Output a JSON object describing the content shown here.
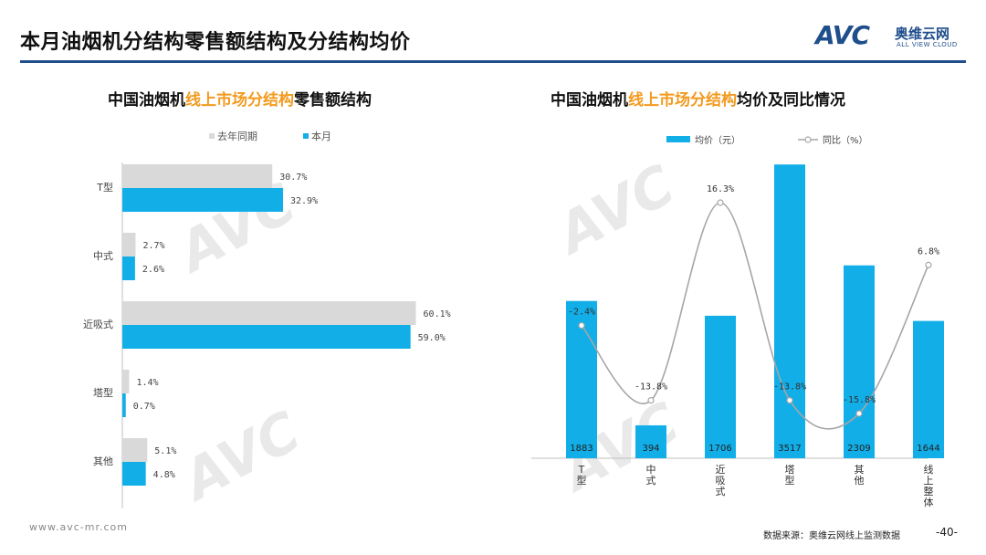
{
  "header": {
    "title": "本月油烟机分结构零售额结构及分结构均价",
    "logo_avc": "AVC",
    "logo_cn": "奥维云网",
    "logo_en": "ALL VIEW CLOUD"
  },
  "left_chart_title": {
    "part1": "中国油烟机",
    "part2": "线上市场分结构",
    "part3": "零售额结构"
  },
  "right_chart_title": {
    "part1": "中国油烟机",
    "part2": "线上市场分结构",
    "part3": "均价及同比情况"
  },
  "footer": {
    "url": "www.avc-mr.com",
    "source": "数据来源：奥维云网线上监测数据",
    "page": "-40-"
  },
  "colors": {
    "current": "#12aee8",
    "last_year": "#d9d9d9",
    "line": "#a6a6a6",
    "highlight": "#f39a1e",
    "brand": "#1f4e8c"
  },
  "chart_data": [
    {
      "type": "bar",
      "orientation": "horizontal",
      "categories": [
        "T型",
        "中式",
        "近吸式",
        "塔型",
        "其他"
      ],
      "series": [
        {
          "name": "去年同期",
          "values": [
            30.7,
            2.7,
            60.1,
            1.4,
            5.1
          ],
          "labels": [
            "30.7%",
            "2.7%",
            "60.1%",
            "1.4%",
            "5.1%"
          ]
        },
        {
          "name": "本月",
          "values": [
            32.9,
            2.6,
            59.0,
            0.7,
            4.8
          ],
          "labels": [
            "32.9%",
            "2.6%",
            "59.0%",
            "0.7%",
            "4.8%"
          ]
        }
      ],
      "legend": "top",
      "grid": false
    },
    {
      "type": "bar",
      "categories": [
        "T型",
        "中式",
        "近吸式",
        "塔型",
        "其他",
        "线上整体"
      ],
      "series": [
        {
          "name": "均价（元）",
          "type": "bar",
          "values": [
            1883,
            394,
            1706,
            3517,
            2309,
            1644
          ]
        },
        {
          "name": "同比（%）",
          "type": "line",
          "values": [
            -2.4,
            -13.8,
            16.3,
            -13.8,
            -15.8,
            6.8
          ],
          "labels": [
            "-2.4%",
            "-13.8%",
            "16.3%",
            "-13.8%",
            "-15.8%",
            "6.8%"
          ]
        }
      ],
      "legend": "top",
      "grid": false
    }
  ]
}
